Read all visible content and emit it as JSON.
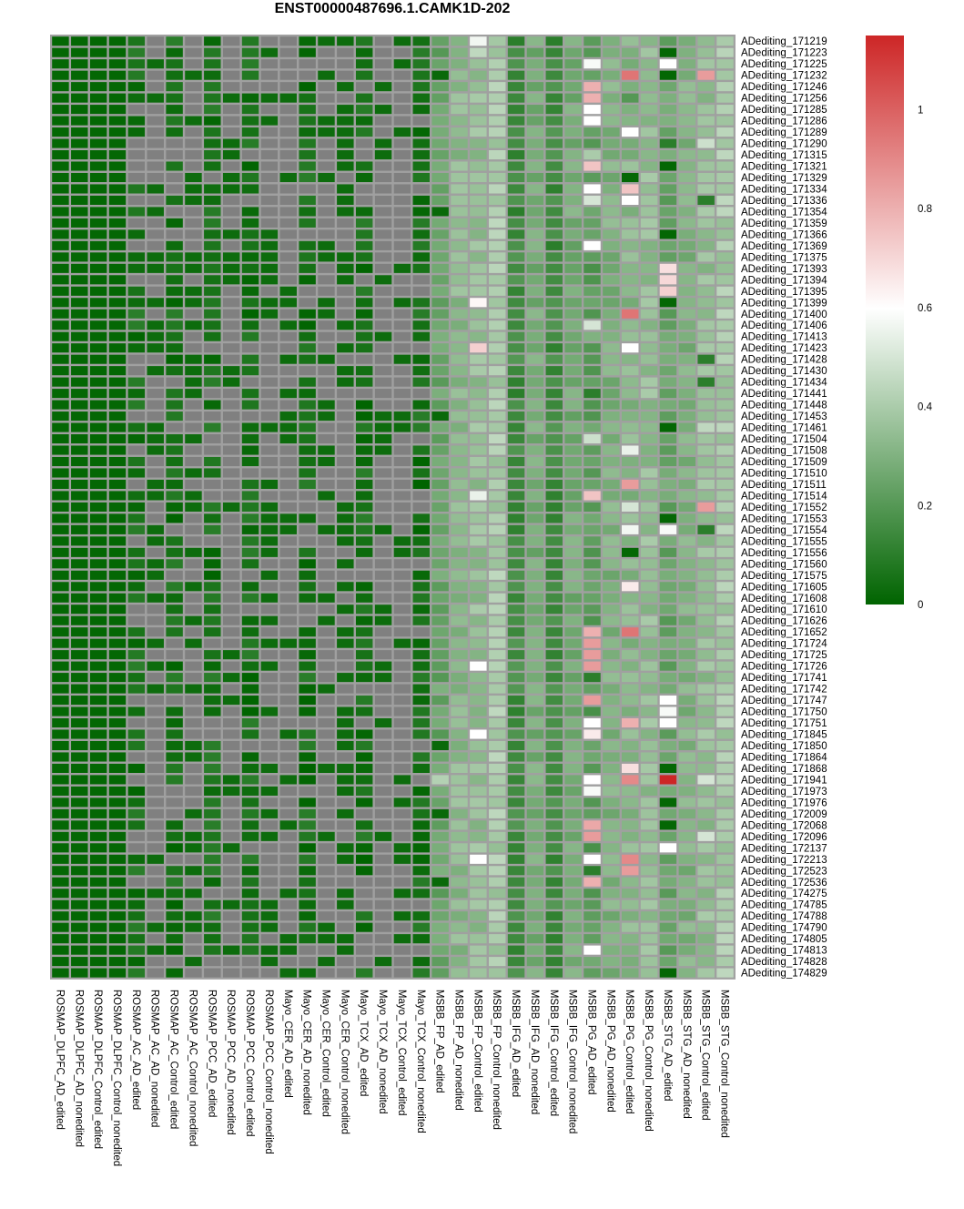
{
  "chart_data": {
    "type": "heatmap",
    "title": "ENST00000487696.1.CAMK1D-202",
    "columns": [
      "ROSMAP_DLPFC_AD_edited",
      "ROSMAP_DLPFC_AD_nonedited",
      "ROSMAP_DLPFC_Control_edited",
      "ROSMAP_DLPFC_Control_nonedited",
      "ROSMAP_AC_AD_edited",
      "ROSMAP_AC_AD_nonedited",
      "ROSMAP_AC_Control_edited",
      "ROSMAP_AC_Control_nonedited",
      "ROSMAP_PCC_AD_edited",
      "ROSMAP_PCC_AD_nonedited",
      "ROSMAP_PCC_Control_edited",
      "ROSMAP_PCC_Control_nonedited",
      "Mayo_CER_AD_edited",
      "Mayo_CER_AD_nonedited",
      "Mayo_CER_Control_edited",
      "Mayo_CER_Control_nonedited",
      "Mayo_TCX_AD_edited",
      "Mayo_TCX_AD_nonedited",
      "Mayo_TCX_Control_edited",
      "Mayo_TCX_Control_nonedited",
      "MSBB_FP_AD_edited",
      "MSBB_FP_AD_nonedited",
      "MSBB_FP_Control_edited",
      "MSBB_FP_Control_nonedited",
      "MSBB_IFG_AD_edited",
      "MSBB_IFG_AD_nonedited",
      "MSBB_IFG_Control_edited",
      "MSBB_IFG_Control_nonedited",
      "MSBB_PG_AD_edited",
      "MSBB_PG_AD_nonedited",
      "MSBB_PG_Control_edited",
      "MSBB_PG_Control_nonedited",
      "MSBB_STG_AD_edited",
      "MSBB_STG_AD_nonedited",
      "MSBB_STG_Control_edited",
      "MSBB_STG_Control_nonedited"
    ],
    "rows": [
      "ADediting_171219",
      "ADediting_171223",
      "ADediting_171225",
      "ADediting_171232",
      "ADediting_171246",
      "ADediting_171256",
      "ADediting_171285",
      "ADediting_171286",
      "ADediting_171289",
      "ADediting_171290",
      "ADediting_171315",
      "ADediting_171321",
      "ADediting_171329",
      "ADediting_171334",
      "ADediting_171336",
      "ADediting_171354",
      "ADediting_171359",
      "ADediting_171366",
      "ADediting_171369",
      "ADediting_171375",
      "ADediting_171393",
      "ADediting_171394",
      "ADediting_171395",
      "ADediting_171399",
      "ADediting_171400",
      "ADediting_171406",
      "ADediting_171413",
      "ADediting_171423",
      "ADediting_171428",
      "ADediting_171430",
      "ADediting_171434",
      "ADediting_171441",
      "ADediting_171448",
      "ADediting_171453",
      "ADediting_171461",
      "ADediting_171504",
      "ADediting_171508",
      "ADediting_171509",
      "ADediting_171510",
      "ADediting_171511",
      "ADediting_171514",
      "ADediting_171552",
      "ADediting_171553",
      "ADediting_171554",
      "ADediting_171555",
      "ADediting_171556",
      "ADediting_171560",
      "ADediting_171575",
      "ADediting_171605",
      "ADediting_171608",
      "ADediting_171610",
      "ADediting_171626",
      "ADediting_171652",
      "ADediting_171724",
      "ADediting_171725",
      "ADediting_171726",
      "ADediting_171741",
      "ADediting_171742",
      "ADediting_171747",
      "ADediting_171750",
      "ADediting_171751",
      "ADediting_171845",
      "ADediting_171850",
      "ADediting_171864",
      "ADediting_171868",
      "ADediting_171941",
      "ADediting_171973",
      "ADediting_171976",
      "ADediting_172009",
      "ADediting_172068",
      "ADediting_172096",
      "ADediting_172137",
      "ADediting_172213",
      "ADediting_172523",
      "ADediting_172536",
      "ADediting_174275",
      "ADediting_174785",
      "ADediting_174788",
      "ADediting_174790",
      "ADediting_174805",
      "ADediting_174813",
      "ADediting_174828",
      "ADediting_174829"
    ],
    "value_range": [
      0,
      1.15
    ],
    "colorbar": {
      "ticks": [
        0,
        0.2,
        0.4,
        0.6,
        0.8,
        1
      ],
      "tick_labels": [
        "0",
        "0.2",
        "0.4",
        "0.6",
        "0.8",
        "1"
      ],
      "colors": [
        "#006400",
        "#ffffff",
        "#cd2626"
      ]
    },
    "na_color": "#808080",
    "base_values": [
      0.01,
      0.01,
      0.01,
      0.01,
      0.05,
      null,
      0.05,
      null,
      0.05,
      null,
      0.05,
      null,
      null,
      0.05,
      null,
      null,
      0.05,
      null,
      null,
      0.05,
      0.25,
      0.33,
      0.35,
      0.4,
      0.15,
      0.28,
      0.15,
      0.28,
      0.22,
      0.3,
      0.32,
      0.35,
      0.25,
      0.3,
      0.35,
      0.4
    ],
    "cells": [
      [
        [
          22,
          0.57
        ],
        [
          24,
          0.1
        ],
        [
          26,
          0.1
        ]
      ],
      [
        [
          22,
          0.45
        ],
        [
          28,
          0.2
        ],
        [
          32,
          0.01
        ]
      ],
      [
        [
          28,
          0.58
        ],
        [
          32,
          0.6
        ]
      ],
      [
        [
          20,
          0.02
        ],
        [
          30,
          0.95
        ],
        [
          32,
          0.01
        ],
        [
          34,
          0.85
        ]
      ],
      [
        [
          28,
          0.8
        ]
      ],
      [
        [
          28,
          0.8
        ],
        [
          30,
          0.2
        ]
      ],
      [
        [
          28,
          0.6
        ]
      ],
      [
        [
          28,
          0.6
        ]
      ],
      [
        [
          30,
          0.6
        ]
      ],
      [
        [
          32,
          0.1
        ],
        [
          34,
          0.48
        ]
      ],
      [
        [
          28,
          0.4
        ]
      ],
      [
        [
          28,
          0.75
        ],
        [
          32,
          0.01
        ]
      ],
      [
        [
          30,
          0.01
        ]
      ],
      [
        [
          28,
          0.6
        ],
        [
          30,
          0.75
        ]
      ],
      [
        [
          28,
          0.5
        ],
        [
          30,
          0.6
        ],
        [
          34,
          0.1
        ]
      ],
      [
        [
          20,
          0.02
        ]
      ],
      [
        [
          29,
          0.35
        ]
      ],
      [
        [
          32,
          0.01
        ]
      ],
      [
        [
          28,
          0.6
        ]
      ],
      [],
      [
        [
          32,
          0.68
        ]
      ],
      [
        [
          32,
          0.7
        ]
      ],
      [
        [
          32,
          0.72
        ]
      ],
      [
        [
          22,
          0.62
        ],
        [
          32,
          0.01
        ]
      ],
      [
        [
          30,
          0.95
        ]
      ],
      [
        [
          28,
          0.5
        ]
      ],
      [
        [
          28,
          0.3
        ]
      ],
      [
        [
          22,
          0.72
        ],
        [
          30,
          0.6
        ]
      ],
      [
        [
          34,
          0.1
        ]
      ],
      [],
      [
        [
          34,
          0.1
        ]
      ],
      [
        [
          28,
          0.1
        ]
      ],
      [],
      [
        [
          20,
          0.02
        ]
      ],
      [
        [
          32,
          0.01
        ],
        [
          34,
          0.45
        ]
      ],
      [
        [
          28,
          0.48
        ]
      ],
      [
        [
          30,
          0.55
        ]
      ],
      [],
      [],
      [
        [
          30,
          0.85
        ]
      ],
      [
        [
          22,
          0.55
        ],
        [
          28,
          0.75
        ]
      ],
      [
        [
          30,
          0.5
        ],
        [
          34,
          0.85
        ]
      ],
      [
        [
          32,
          0.01
        ]
      ],
      [
        [
          30,
          0.57
        ],
        [
          32,
          0.58
        ],
        [
          34,
          0.1
        ]
      ],
      [],
      [
        [
          30,
          0.01
        ]
      ],
      [],
      [],
      [
        [
          30,
          0.65
        ]
      ],
      [],
      [],
      [],
      [
        [
          28,
          0.8
        ],
        [
          30,
          0.95
        ]
      ],
      [
        [
          28,
          0.85
        ]
      ],
      [
        [
          28,
          0.85
        ]
      ],
      [
        [
          22,
          0.6
        ],
        [
          28,
          0.85
        ]
      ],
      [
        [
          28,
          0.1
        ]
      ],
      [],
      [
        [
          28,
          0.85
        ],
        [
          32,
          0.6
        ]
      ],
      [
        [
          32,
          0.58
        ]
      ],
      [
        [
          28,
          0.6
        ],
        [
          30,
          0.8
        ],
        [
          32,
          0.6
        ]
      ],
      [
        [
          22,
          0.6
        ],
        [
          28,
          0.65
        ]
      ],
      [
        [
          20,
          0.02
        ]
      ],
      [],
      [
        [
          30,
          0.68
        ],
        [
          32,
          0.01
        ]
      ],
      [
        [
          20,
          0.42
        ],
        [
          28,
          0.6
        ],
        [
          30,
          0.9
        ],
        [
          32,
          1.15
        ],
        [
          34,
          0.5
        ]
      ],
      [
        [
          28,
          0.58
        ]
      ],
      [
        [
          32,
          0.01
        ]
      ],
      [
        [
          20,
          0.02
        ]
      ],
      [
        [
          28,
          0.82
        ],
        [
          32,
          0.01
        ]
      ],
      [
        [
          28,
          0.85
        ],
        [
          34,
          0.5
        ]
      ],
      [
        [
          32,
          0.6
        ]
      ],
      [
        [
          22,
          0.6
        ],
        [
          28,
          0.6
        ],
        [
          30,
          0.9
        ]
      ],
      [
        [
          28,
          0.1
        ],
        [
          30,
          0.85
        ]
      ],
      [
        [
          20,
          0.02
        ],
        [
          28,
          0.8
        ]
      ],
      [],
      [],
      [],
      [],
      [],
      [
        [
          28,
          0.6
        ]
      ],
      [],
      [
        [
          32,
          0.01
        ]
      ]
    ]
  }
}
